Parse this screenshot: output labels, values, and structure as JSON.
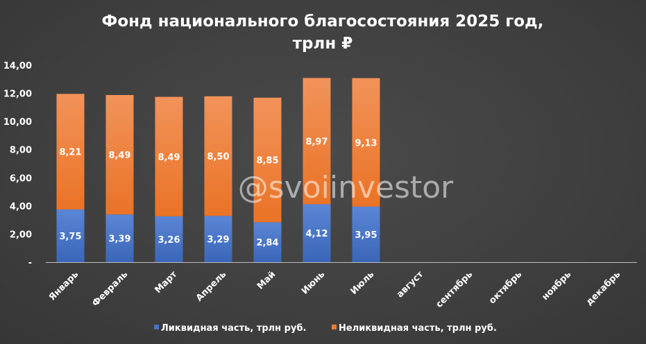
{
  "chart_data": {
    "type": "bar",
    "stacked": true,
    "title_lines": [
      "Фонд национального благосостояния 2025 год,",
      "трлн ₽"
    ],
    "categories": [
      "Январь",
      "Февраль",
      "Март",
      "Апрель",
      "Май",
      "Июнь",
      "Июль",
      "август",
      "сентябрь",
      "октябрь",
      "ноябрь",
      "декабрь"
    ],
    "series": [
      {
        "name": "Ликвидная часть, трлн руб.",
        "color": "#4472c4",
        "values": [
          3.75,
          3.39,
          3.26,
          3.29,
          2.84,
          4.12,
          3.95,
          null,
          null,
          null,
          null,
          null
        ],
        "labels": [
          "3,75",
          "3,39",
          "3,26",
          "3,29",
          "2,84",
          "4,12",
          "3,95",
          null,
          null,
          null,
          null,
          null
        ]
      },
      {
        "name": "Неликвидная часть, трлн руб.",
        "color": "#ed7d31",
        "values": [
          8.21,
          8.49,
          8.49,
          8.5,
          8.85,
          8.97,
          9.13,
          null,
          null,
          null,
          null,
          null
        ],
        "labels": [
          "8,21",
          "8,49",
          "8,49",
          "8,50",
          "8,85",
          "8,97",
          "9,13",
          null,
          null,
          null,
          null,
          null
        ]
      }
    ],
    "ylim": [
      0,
      14
    ],
    "yticks": [
      0,
      2,
      4,
      6,
      8,
      10,
      12,
      14
    ],
    "ytick_labels": [
      "-",
      "2,00",
      "4,00",
      "6,00",
      "8,00",
      "10,00",
      "12,00",
      "14,00"
    ],
    "grid": false,
    "legend_position": "bottom",
    "watermark": "@svoiinvestor"
  }
}
